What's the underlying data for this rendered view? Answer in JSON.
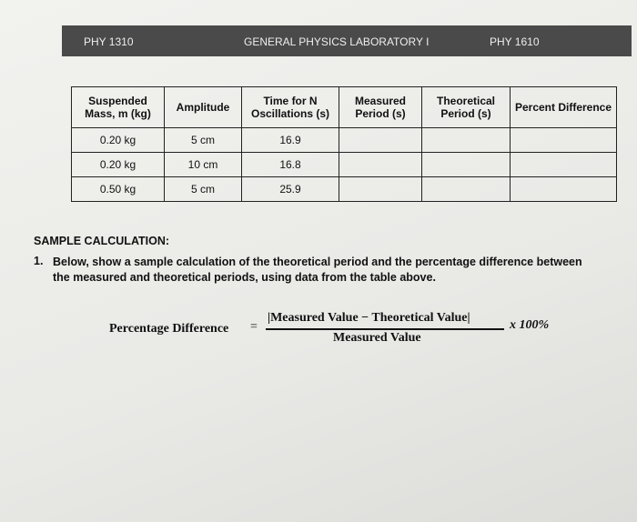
{
  "header": {
    "left": "PHY 1310",
    "center": "GENERAL PHYSICS LABORATORY I",
    "right": "PHY 1610"
  },
  "table": {
    "columns": [
      "Suspended Mass, m (kg)",
      "Amplitude",
      "Time for N Oscillations (s)",
      "Measured Period (s)",
      "Theoretical Period (s)",
      "Percent Difference"
    ],
    "rows": [
      [
        "0.20 kg",
        "5 cm",
        "16.9"
      ],
      [
        "0.20 kg",
        "10 cm",
        "16.8"
      ],
      [
        "0.50 kg",
        "5 cm",
        "25.9"
      ]
    ]
  },
  "section": {
    "title": "SAMPLE CALCULATION:",
    "items": [
      {
        "number": "1.",
        "text": "Below, show a sample calculation of the theoretical period and the percentage difference between the measured and theoretical periods, using data from the table above."
      }
    ]
  },
  "formula": {
    "label": "Percentage Difference",
    "equals": "=",
    "numerator": "|Measured Value − Theoretical Value|",
    "denominator": "Measured Value",
    "factor": "x 100%"
  }
}
